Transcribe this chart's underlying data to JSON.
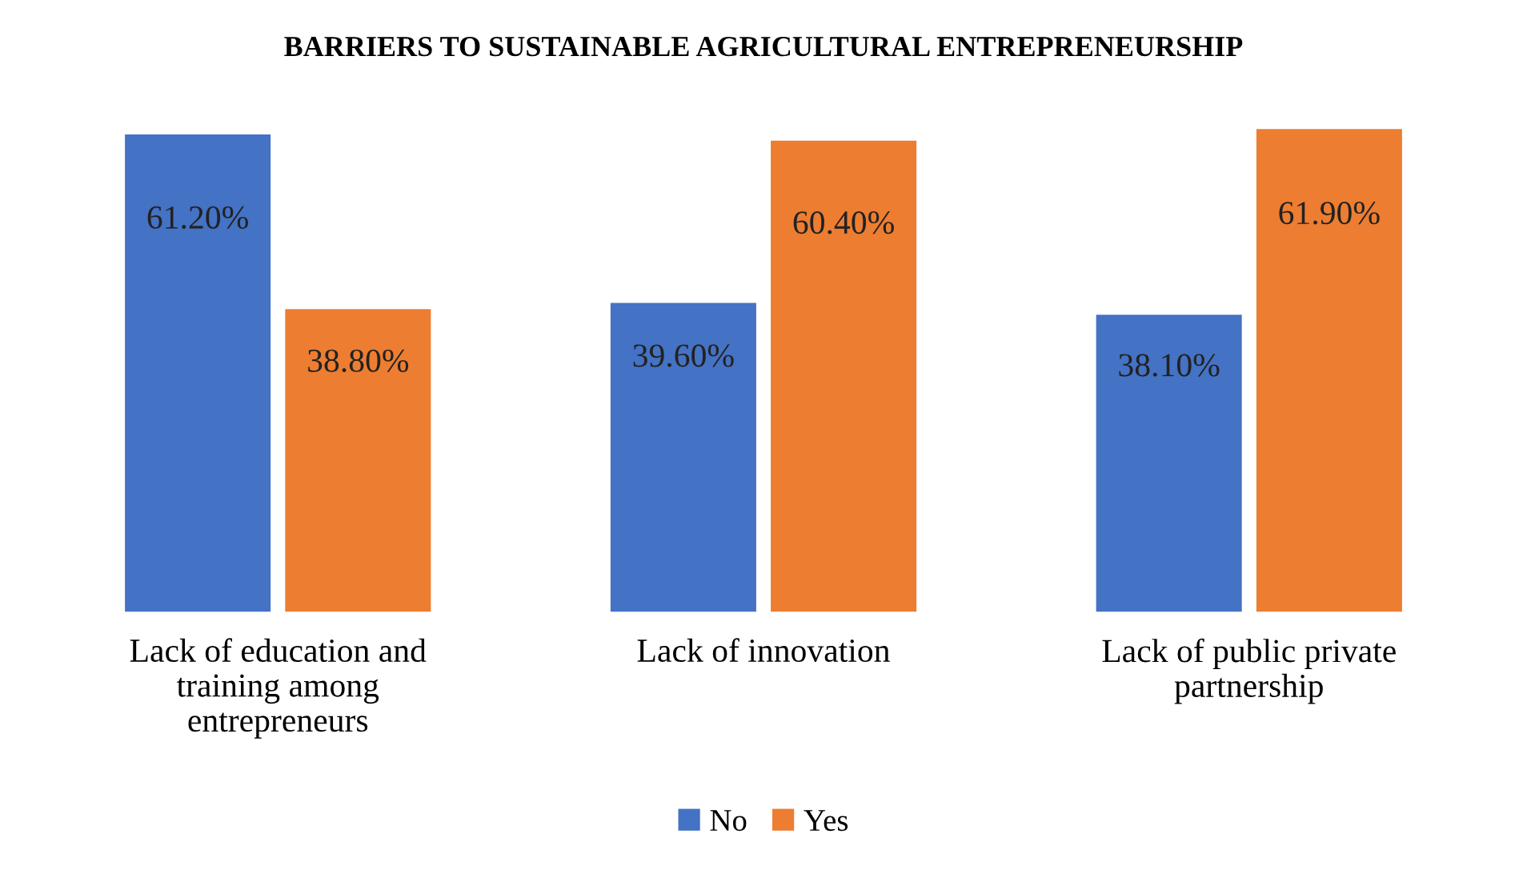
{
  "chart_data": {
    "type": "bar",
    "title": "BARRIERS TO SUSTAINABLE AGRICULTURAL ENTREPRENEURSHIP",
    "categories": [
      "Lack of education and\ntraining among\nentrepreneurs",
      "Lack of innovation",
      "Lack of public private\npartnership"
    ],
    "series": [
      {
        "name": "No",
        "color": "#4472c4",
        "values": [
          61.2,
          39.6,
          38.1
        ],
        "value_labels": [
          "61.20%",
          "39.60%",
          "38.10%"
        ]
      },
      {
        "name": "Yes",
        "color": "#ed7d31",
        "values": [
          38.8,
          60.4,
          61.9
        ],
        "value_labels": [
          "38.80%",
          "60.40%",
          "61.90%"
        ]
      }
    ],
    "legend": "bottom",
    "grid": false
  }
}
